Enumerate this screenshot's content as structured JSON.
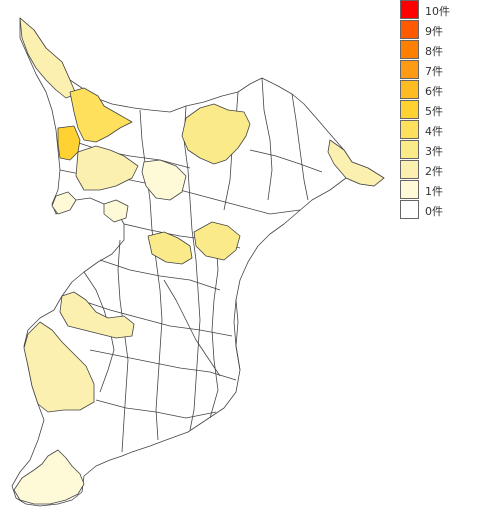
{
  "legend": {
    "items": [
      {
        "label": "10件",
        "color": "#ff0000"
      },
      {
        "label": "9件",
        "color": "#ff5a00"
      },
      {
        "label": "8件",
        "color": "#ff7f00"
      },
      {
        "label": "7件",
        "color": "#ff9a14"
      },
      {
        "label": "6件",
        "color": "#ffbb22"
      },
      {
        "label": "5件",
        "color": "#ffd232"
      },
      {
        "label": "4件",
        "color": "#ffe05c"
      },
      {
        "label": "3件",
        "color": "#fbea8a"
      },
      {
        "label": "2件",
        "color": "#fbf0b0"
      },
      {
        "label": "1件",
        "color": "#fefad8"
      },
      {
        "label": "0件",
        "color": "#ffffff"
      }
    ]
  },
  "map_data": {
    "type": "choropleth",
    "regions": [
      {
        "name": "nw-strip",
        "count": 2
      },
      {
        "name": "nw-level5",
        "count": 5
      },
      {
        "name": "nw-level6",
        "count": 6
      },
      {
        "name": "north-center",
        "count": 3
      },
      {
        "name": "northeast-cape",
        "count": 2
      },
      {
        "name": "middle-west-1",
        "count": 2
      },
      {
        "name": "middle-west-2",
        "count": 1
      },
      {
        "name": "middle-center",
        "count": 1
      },
      {
        "name": "coast-west",
        "count": 1
      },
      {
        "name": "center-band",
        "count": 3
      },
      {
        "name": "center-east",
        "count": 3
      },
      {
        "name": "south-west-1",
        "count": 2
      },
      {
        "name": "south-west-2",
        "count": 2
      },
      {
        "name": "south-tip",
        "count": 1
      }
    ]
  }
}
